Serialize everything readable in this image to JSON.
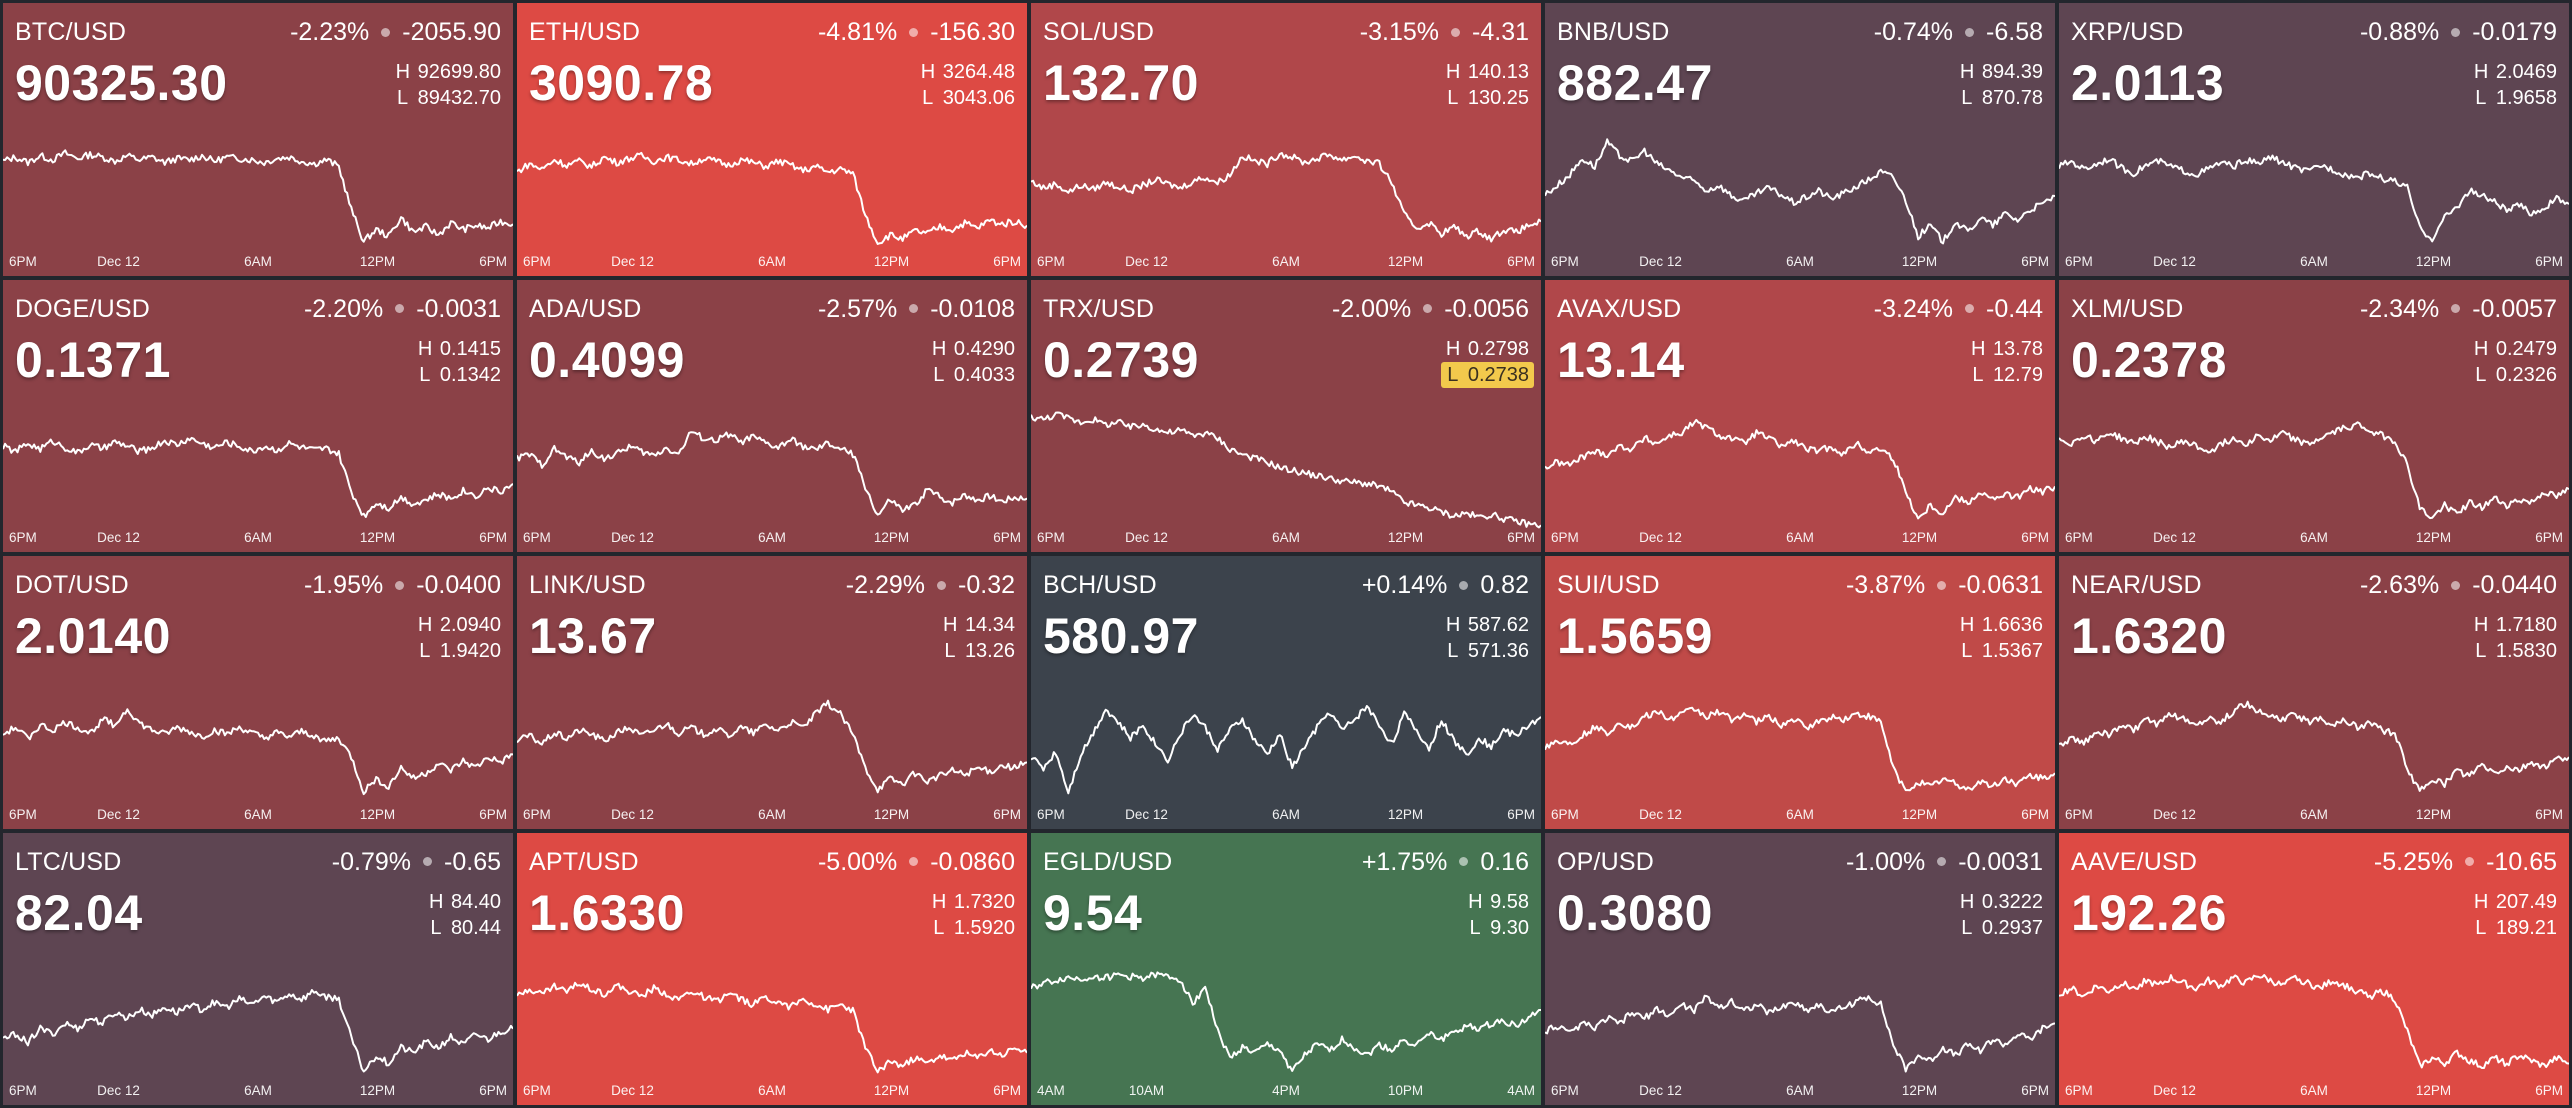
{
  "colors": {
    "background": "#23262d",
    "gap": "#23262d",
    "line": "#ffffff",
    "low_flag_bg": "#f2c94c"
  },
  "tiles": [
    {
      "pair": "BTC/USD",
      "change_pct": "-2.23%",
      "change_abs": "-2055.90",
      "price": "90325.30",
      "high": "92699.80",
      "low": "89432.70",
      "bg": "#8b4147",
      "ticks": [
        "6PM",
        "Dec 12",
        "6AM",
        "12PM",
        "6PM"
      ],
      "spark": [
        0.7,
        0.73,
        0.69,
        0.74,
        0.71,
        0.76,
        0.72,
        0.75,
        0.73,
        0.7,
        0.74,
        0.71,
        0.73,
        0.69,
        0.72,
        0.71,
        0.74,
        0.7,
        0.73,
        0.72,
        0.71,
        0.69,
        0.72,
        0.73,
        0.7,
        0.68,
        0.71,
        0.66,
        0.34,
        0.1,
        0.19,
        0.14,
        0.28,
        0.17,
        0.21,
        0.15,
        0.24,
        0.19,
        0.22,
        0.2,
        0.25,
        0.23
      ]
    },
    {
      "pair": "ETH/USD",
      "change_pct": "-4.81%",
      "change_abs": "-156.30",
      "price": "3090.78",
      "high": "3264.48",
      "low": "3043.06",
      "bg": "#dd4a44",
      "ticks": [
        "6PM",
        "Dec 12",
        "6AM",
        "12PM",
        "6PM"
      ],
      "spark": [
        0.62,
        0.68,
        0.64,
        0.71,
        0.67,
        0.7,
        0.66,
        0.73,
        0.69,
        0.72,
        0.74,
        0.7,
        0.73,
        0.71,
        0.68,
        0.72,
        0.7,
        0.67,
        0.71,
        0.69,
        0.66,
        0.7,
        0.67,
        0.63,
        0.66,
        0.62,
        0.64,
        0.61,
        0.3,
        0.09,
        0.15,
        0.12,
        0.18,
        0.16,
        0.21,
        0.19,
        0.24,
        0.2,
        0.26,
        0.23,
        0.25,
        0.22
      ]
    },
    {
      "pair": "SOL/USD",
      "change_pct": "-3.15%",
      "change_abs": "-4.31",
      "price": "132.70",
      "high": "140.13",
      "low": "130.25",
      "bg": "#b0474a",
      "ticks": [
        "6PM",
        "Dec 12",
        "6AM",
        "12PM",
        "6PM"
      ],
      "spark": [
        0.55,
        0.5,
        0.53,
        0.47,
        0.52,
        0.49,
        0.54,
        0.51,
        0.48,
        0.52,
        0.56,
        0.53,
        0.5,
        0.55,
        0.58,
        0.54,
        0.6,
        0.74,
        0.7,
        0.68,
        0.76,
        0.73,
        0.69,
        0.72,
        0.75,
        0.71,
        0.74,
        0.7,
        0.68,
        0.54,
        0.3,
        0.2,
        0.24,
        0.16,
        0.21,
        0.14,
        0.18,
        0.12,
        0.19,
        0.17,
        0.22,
        0.25
      ]
    },
    {
      "pair": "BNB/USD",
      "change_pct": "-0.74%",
      "change_abs": "-6.58",
      "price": "882.47",
      "high": "894.39",
      "low": "870.78",
      "bg": "#5e4552",
      "ticks": [
        "6PM",
        "Dec 12",
        "6AM",
        "12PM",
        "6PM"
      ],
      "spark": [
        0.45,
        0.52,
        0.6,
        0.72,
        0.66,
        0.84,
        0.74,
        0.7,
        0.78,
        0.68,
        0.63,
        0.58,
        0.55,
        0.48,
        0.52,
        0.44,
        0.4,
        0.46,
        0.5,
        0.45,
        0.39,
        0.43,
        0.48,
        0.42,
        0.46,
        0.51,
        0.56,
        0.62,
        0.58,
        0.41,
        0.14,
        0.22,
        0.1,
        0.25,
        0.17,
        0.28,
        0.22,
        0.31,
        0.26,
        0.34,
        0.38,
        0.44
      ]
    },
    {
      "pair": "XRP/USD",
      "change_pct": "-0.88%",
      "change_abs": "-0.0179",
      "price": "2.0113",
      "high": "2.0469",
      "low": "1.9658",
      "bg": "#5e4552",
      "ticks": [
        "6PM",
        "Dec 12",
        "6AM",
        "12PM",
        "6PM"
      ],
      "spark": [
        0.66,
        0.7,
        0.64,
        0.68,
        0.72,
        0.65,
        0.61,
        0.67,
        0.7,
        0.66,
        0.63,
        0.6,
        0.64,
        0.69,
        0.66,
        0.71,
        0.68,
        0.73,
        0.69,
        0.65,
        0.62,
        0.67,
        0.64,
        0.6,
        0.58,
        0.61,
        0.57,
        0.55,
        0.5,
        0.2,
        0.12,
        0.28,
        0.36,
        0.48,
        0.44,
        0.4,
        0.33,
        0.37,
        0.31,
        0.35,
        0.42,
        0.38
      ]
    },
    {
      "pair": "DOGE/USD",
      "change_pct": "-2.20%",
      "change_abs": "-0.0031",
      "price": "0.1371",
      "high": "0.1415",
      "low": "0.1342",
      "bg": "#8b4147",
      "ticks": [
        "6PM",
        "Dec 12",
        "6AM",
        "12PM",
        "6PM"
      ],
      "spark": [
        0.64,
        0.6,
        0.66,
        0.62,
        0.68,
        0.63,
        0.59,
        0.65,
        0.62,
        0.67,
        0.64,
        0.6,
        0.63,
        0.68,
        0.65,
        0.7,
        0.66,
        0.63,
        0.67,
        0.64,
        0.6,
        0.64,
        0.61,
        0.66,
        0.63,
        0.61,
        0.62,
        0.58,
        0.3,
        0.12,
        0.22,
        0.18,
        0.26,
        0.21,
        0.24,
        0.28,
        0.25,
        0.31,
        0.27,
        0.33,
        0.3,
        0.36
      ]
    },
    {
      "pair": "ADA/USD",
      "change_pct": "-2.57%",
      "change_abs": "-0.0108",
      "price": "0.4099",
      "high": "0.4290",
      "low": "0.4033",
      "bg": "#8b4147",
      "ticks": [
        "6PM",
        "Dec 12",
        "6AM",
        "12PM",
        "6PM"
      ],
      "spark": [
        0.55,
        0.58,
        0.5,
        0.62,
        0.56,
        0.52,
        0.6,
        0.55,
        0.58,
        0.64,
        0.6,
        0.57,
        0.63,
        0.58,
        0.75,
        0.7,
        0.68,
        0.73,
        0.67,
        0.71,
        0.66,
        0.63,
        0.69,
        0.64,
        0.61,
        0.66,
        0.62,
        0.58,
        0.34,
        0.12,
        0.24,
        0.16,
        0.2,
        0.32,
        0.26,
        0.22,
        0.28,
        0.24,
        0.27,
        0.23,
        0.26,
        0.25
      ]
    },
    {
      "pair": "TRX/USD",
      "change_pct": "-2.00%",
      "change_abs": "-0.0056",
      "price": "0.2739",
      "high": "0.2798",
      "low": "0.2738",
      "low_flag": true,
      "bg": "#8b4147",
      "ticks": [
        "6PM",
        "Dec 12",
        "6AM",
        "12PM",
        "6PM"
      ],
      "spark": [
        0.86,
        0.84,
        0.88,
        0.85,
        0.82,
        0.84,
        0.8,
        0.82,
        0.78,
        0.8,
        0.77,
        0.74,
        0.76,
        0.72,
        0.74,
        0.7,
        0.62,
        0.58,
        0.55,
        0.52,
        0.48,
        0.46,
        0.44,
        0.42,
        0.4,
        0.38,
        0.37,
        0.36,
        0.34,
        0.3,
        0.22,
        0.2,
        0.18,
        0.15,
        0.12,
        0.14,
        0.11,
        0.13,
        0.1,
        0.08,
        0.06,
        0.05
      ]
    },
    {
      "pair": "AVAX/USD",
      "change_pct": "-3.24%",
      "change_abs": "-0.44",
      "price": "13.14",
      "high": "13.78",
      "low": "12.79",
      "bg": "#b0474a",
      "ticks": [
        "6PM",
        "Dec 12",
        "6AM",
        "12PM",
        "6PM"
      ],
      "spark": [
        0.48,
        0.52,
        0.5,
        0.56,
        0.6,
        0.58,
        0.64,
        0.62,
        0.7,
        0.66,
        0.72,
        0.74,
        0.82,
        0.78,
        0.72,
        0.7,
        0.66,
        0.74,
        0.7,
        0.64,
        0.68,
        0.62,
        0.6,
        0.64,
        0.58,
        0.66,
        0.6,
        0.62,
        0.55,
        0.3,
        0.1,
        0.2,
        0.14,
        0.26,
        0.22,
        0.3,
        0.24,
        0.28,
        0.26,
        0.32,
        0.3,
        0.34
      ]
    },
    {
      "pair": "XLM/USD",
      "change_pct": "-2.34%",
      "change_abs": "-0.0057",
      "price": "0.2378",
      "high": "0.2479",
      "low": "0.2326",
      "bg": "#8b4147",
      "ticks": [
        "6PM",
        "Dec 12",
        "6AM",
        "12PM",
        "6PM"
      ],
      "spark": [
        0.7,
        0.66,
        0.72,
        0.68,
        0.74,
        0.7,
        0.66,
        0.71,
        0.67,
        0.63,
        0.68,
        0.64,
        0.6,
        0.65,
        0.7,
        0.66,
        0.72,
        0.68,
        0.74,
        0.69,
        0.65,
        0.7,
        0.74,
        0.78,
        0.8,
        0.76,
        0.72,
        0.68,
        0.5,
        0.18,
        0.1,
        0.2,
        0.14,
        0.22,
        0.18,
        0.25,
        0.2,
        0.24,
        0.22,
        0.3,
        0.26,
        0.32
      ]
    },
    {
      "pair": "DOT/USD",
      "change_pct": "-1.95%",
      "change_abs": "-0.0400",
      "price": "2.0140",
      "high": "2.0940",
      "low": "1.9420",
      "bg": "#8b4147",
      "ticks": [
        "6PM",
        "Dec 12",
        "6AM",
        "12PM",
        "6PM"
      ],
      "spark": [
        0.55,
        0.6,
        0.52,
        0.62,
        0.58,
        0.64,
        0.6,
        0.56,
        0.66,
        0.62,
        0.74,
        0.63,
        0.58,
        0.55,
        0.6,
        0.57,
        0.53,
        0.58,
        0.55,
        0.6,
        0.56,
        0.52,
        0.56,
        0.53,
        0.57,
        0.54,
        0.5,
        0.52,
        0.38,
        0.12,
        0.22,
        0.16,
        0.3,
        0.22,
        0.26,
        0.33,
        0.28,
        0.35,
        0.3,
        0.38,
        0.34,
        0.4
      ]
    },
    {
      "pair": "LINK/USD",
      "change_pct": "-2.29%",
      "change_abs": "-0.32",
      "price": "13.67",
      "high": "14.34",
      "low": "13.26",
      "bg": "#8b4147",
      "ticks": [
        "6PM",
        "Dec 12",
        "6AM",
        "12PM",
        "6PM"
      ],
      "spark": [
        0.5,
        0.54,
        0.48,
        0.56,
        0.52,
        0.58,
        0.55,
        0.5,
        0.56,
        0.6,
        0.54,
        0.58,
        0.63,
        0.56,
        0.6,
        0.55,
        0.59,
        0.54,
        0.6,
        0.56,
        0.62,
        0.58,
        0.64,
        0.6,
        0.7,
        0.78,
        0.7,
        0.55,
        0.3,
        0.14,
        0.22,
        0.18,
        0.26,
        0.2,
        0.24,
        0.28,
        0.25,
        0.3,
        0.27,
        0.32,
        0.3,
        0.34
      ]
    },
    {
      "pair": "BCH/USD",
      "change_pct": "+0.14%",
      "change_abs": "0.82",
      "price": "580.97",
      "high": "587.62",
      "low": "571.36",
      "bg": "#3c434c",
      "ticks": [
        "6PM",
        "Dec 12",
        "6AM",
        "12PM",
        "6PM"
      ],
      "spark": [
        0.38,
        0.3,
        0.42,
        0.12,
        0.4,
        0.56,
        0.74,
        0.64,
        0.52,
        0.62,
        0.48,
        0.36,
        0.55,
        0.7,
        0.6,
        0.44,
        0.58,
        0.66,
        0.5,
        0.4,
        0.55,
        0.3,
        0.46,
        0.6,
        0.72,
        0.58,
        0.66,
        0.76,
        0.62,
        0.48,
        0.7,
        0.58,
        0.44,
        0.66,
        0.5,
        0.4,
        0.52,
        0.46,
        0.58,
        0.54,
        0.62,
        0.68
      ]
    },
    {
      "pair": "SUI/USD",
      "change_pct": "-3.87%",
      "change_abs": "-0.0631",
      "price": "1.5659",
      "high": "1.6636",
      "low": "1.5367",
      "bg": "#c04a48",
      "ticks": [
        "6PM",
        "Dec 12",
        "6AM",
        "12PM",
        "6PM"
      ],
      "spark": [
        0.46,
        0.5,
        0.48,
        0.54,
        0.6,
        0.56,
        0.64,
        0.6,
        0.68,
        0.72,
        0.66,
        0.7,
        0.74,
        0.68,
        0.72,
        0.66,
        0.7,
        0.64,
        0.68,
        0.62,
        0.66,
        0.6,
        0.64,
        0.68,
        0.66,
        0.7,
        0.68,
        0.64,
        0.3,
        0.12,
        0.2,
        0.16,
        0.22,
        0.18,
        0.14,
        0.2,
        0.16,
        0.22,
        0.18,
        0.24,
        0.22,
        0.26
      ]
    },
    {
      "pair": "NEAR/USD",
      "change_pct": "-2.63%",
      "change_abs": "-0.0440",
      "price": "1.6320",
      "high": "1.7180",
      "low": "1.5830",
      "bg": "#8b4147",
      "ticks": [
        "6PM",
        "Dec 12",
        "6AM",
        "12PM",
        "6PM"
      ],
      "spark": [
        0.46,
        0.52,
        0.48,
        0.58,
        0.54,
        0.62,
        0.58,
        0.66,
        0.62,
        0.7,
        0.66,
        0.62,
        0.68,
        0.64,
        0.72,
        0.78,
        0.72,
        0.68,
        0.66,
        0.7,
        0.64,
        0.68,
        0.62,
        0.66,
        0.6,
        0.64,
        0.58,
        0.55,
        0.3,
        0.12,
        0.22,
        0.18,
        0.28,
        0.24,
        0.32,
        0.26,
        0.3,
        0.28,
        0.34,
        0.3,
        0.36,
        0.38
      ]
    },
    {
      "pair": "LTC/USD",
      "change_pct": "-0.79%",
      "change_abs": "-0.65",
      "price": "82.04",
      "high": "84.40",
      "low": "80.44",
      "bg": "#5e4552",
      "ticks": [
        "6PM",
        "Dec 12",
        "6AM",
        "12PM",
        "6PM"
      ],
      "spark": [
        0.34,
        0.38,
        0.32,
        0.42,
        0.38,
        0.46,
        0.42,
        0.5,
        0.46,
        0.54,
        0.5,
        0.56,
        0.52,
        0.58,
        0.54,
        0.6,
        0.56,
        0.62,
        0.58,
        0.64,
        0.6,
        0.66,
        0.62,
        0.68,
        0.64,
        0.7,
        0.66,
        0.64,
        0.35,
        0.1,
        0.22,
        0.16,
        0.28,
        0.24,
        0.32,
        0.28,
        0.36,
        0.3,
        0.38,
        0.34,
        0.4,
        0.42
      ]
    },
    {
      "pair": "APT/USD",
      "change_pct": "-5.00%",
      "change_abs": "-0.0860",
      "price": "1.6330",
      "high": "1.7320",
      "low": "1.5920",
      "bg": "#dd4a44",
      "ticks": [
        "6PM",
        "Dec 12",
        "6AM",
        "12PM",
        "6PM"
      ],
      "spark": [
        0.66,
        0.72,
        0.68,
        0.74,
        0.7,
        0.76,
        0.72,
        0.68,
        0.74,
        0.7,
        0.66,
        0.72,
        0.68,
        0.64,
        0.7,
        0.66,
        0.62,
        0.68,
        0.64,
        0.6,
        0.66,
        0.62,
        0.58,
        0.64,
        0.6,
        0.56,
        0.6,
        0.56,
        0.28,
        0.1,
        0.18,
        0.14,
        0.2,
        0.16,
        0.22,
        0.18,
        0.24,
        0.2,
        0.26,
        0.22,
        0.28,
        0.24
      ]
    },
    {
      "pair": "EGLD/USD",
      "change_pct": "+1.75%",
      "change_abs": "0.16",
      "price": "9.54",
      "high": "9.58",
      "low": "9.30",
      "bg": "#467552",
      "ticks": [
        "4AM",
        "10AM",
        "4PM",
        "10PM",
        "4AM"
      ],
      "spark": [
        0.72,
        0.76,
        0.78,
        0.8,
        0.79,
        0.81,
        0.8,
        0.82,
        0.81,
        0.8,
        0.82,
        0.81,
        0.79,
        0.6,
        0.74,
        0.4,
        0.2,
        0.28,
        0.24,
        0.3,
        0.26,
        0.1,
        0.22,
        0.3,
        0.26,
        0.34,
        0.28,
        0.22,
        0.3,
        0.26,
        0.34,
        0.3,
        0.38,
        0.34,
        0.4,
        0.44,
        0.42,
        0.46,
        0.48,
        0.44,
        0.5,
        0.56
      ]
    },
    {
      "pair": "OP/USD",
      "change_pct": "-1.00%",
      "change_abs": "-0.0031",
      "price": "0.3080",
      "high": "0.3222",
      "low": "0.2937",
      "bg": "#5e4552",
      "ticks": [
        "6PM",
        "Dec 12",
        "6AM",
        "12PM",
        "6PM"
      ],
      "spark": [
        0.4,
        0.44,
        0.38,
        0.46,
        0.42,
        0.5,
        0.46,
        0.54,
        0.5,
        0.56,
        0.52,
        0.6,
        0.56,
        0.66,
        0.58,
        0.62,
        0.56,
        0.6,
        0.54,
        0.58,
        0.62,
        0.56,
        0.6,
        0.54,
        0.58,
        0.62,
        0.66,
        0.6,
        0.3,
        0.12,
        0.22,
        0.18,
        0.28,
        0.22,
        0.3,
        0.26,
        0.34,
        0.3,
        0.38,
        0.34,
        0.42,
        0.46
      ]
    },
    {
      "pair": "AAVE/USD",
      "change_pct": "-5.25%",
      "change_abs": "-10.65",
      "price": "192.26",
      "high": "207.49",
      "low": "189.21",
      "bg": "#dd4a44",
      "ticks": [
        "6PM",
        "Dec 12",
        "6AM",
        "12PM",
        "6PM"
      ],
      "spark": [
        0.68,
        0.72,
        0.66,
        0.74,
        0.7,
        0.76,
        0.72,
        0.78,
        0.74,
        0.8,
        0.76,
        0.72,
        0.78,
        0.74,
        0.8,
        0.76,
        0.82,
        0.78,
        0.74,
        0.8,
        0.76,
        0.72,
        0.78,
        0.74,
        0.7,
        0.66,
        0.7,
        0.64,
        0.4,
        0.14,
        0.2,
        0.16,
        0.24,
        0.18,
        0.14,
        0.2,
        0.16,
        0.22,
        0.18,
        0.14,
        0.2,
        0.16
      ]
    }
  ]
}
